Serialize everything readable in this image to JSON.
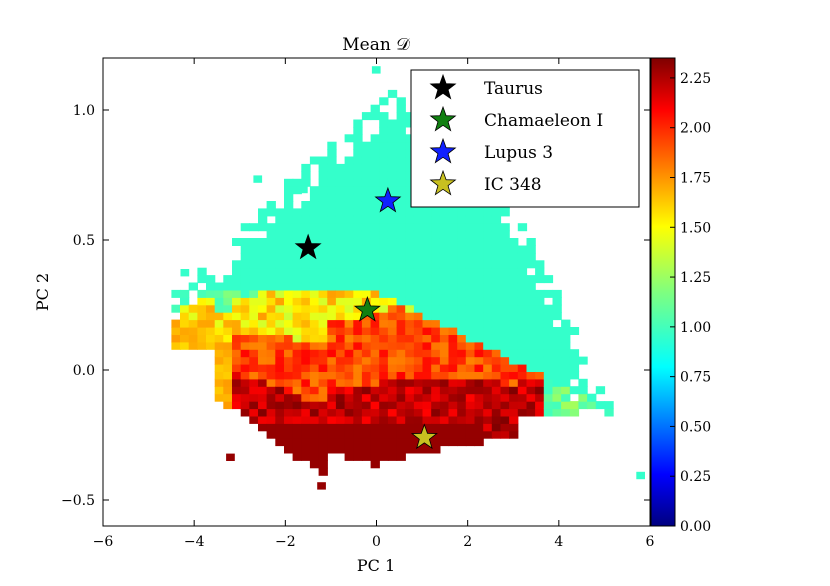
{
  "chart_data": {
    "type": "heatmap",
    "title": "Mean 𝒟",
    "xlabel": "PC 1",
    "ylabel": "PC 2",
    "xlim": [
      -6,
      6
    ],
    "ylim": [
      -0.6,
      1.2
    ],
    "x_ticks": [
      -6,
      -4,
      -2,
      0,
      2,
      4,
      6
    ],
    "x_tick_labels": [
      "−6",
      "−4",
      "−2",
      "0",
      "2",
      "4",
      "6"
    ],
    "y_ticks": [
      -0.5,
      0.0,
      0.5,
      1.0
    ],
    "y_tick_labels": [
      "−0.5",
      "0.0",
      "0.5",
      "1.0"
    ],
    "grid": false,
    "colorbar": {
      "colormap": "jet",
      "range": [
        0.0,
        2.35
      ],
      "ticks": [
        0.0,
        0.25,
        0.5,
        0.75,
        1.0,
        1.25,
        1.5,
        1.75,
        2.0,
        2.25
      ],
      "tick_labels": [
        "0.00",
        "0.25",
        "0.50",
        "0.75",
        "1.00",
        "1.25",
        "1.50",
        "1.75",
        "2.00",
        "2.25"
      ]
    },
    "heatmap_regions": [
      {
        "description": "upper lobe",
        "value": 1.0
      },
      {
        "description": "left yellow band",
        "value": 1.6
      },
      {
        "description": "middle orange band",
        "value": 1.95
      },
      {
        "description": "lower dark-red clumps",
        "value": 2.3
      }
    ],
    "series": [
      {
        "name": "Taurus",
        "x": -1.5,
        "y": 0.47,
        "color": "#000000",
        "marker": "star"
      },
      {
        "name": "Chamaeleon I",
        "x": -0.2,
        "y": 0.23,
        "color": "#118011",
        "marker": "star"
      },
      {
        "name": "Lupus 3",
        "x": 0.25,
        "y": 0.65,
        "color": "#1020ff",
        "marker": "star"
      },
      {
        "name": "IC 348",
        "x": 1.05,
        "y": -0.26,
        "color": "#c8c020",
        "marker": "star"
      }
    ],
    "legend_position": "top-right"
  }
}
